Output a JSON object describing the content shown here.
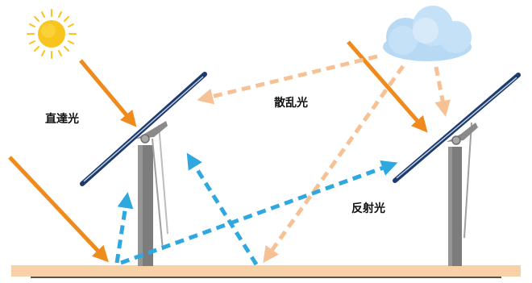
{
  "labels": {
    "direct": "直達光",
    "scattered": "散乱光",
    "reflected": "反射光"
  },
  "icons": {
    "sun": "sun-icon",
    "cloud": "cloud-icon",
    "panel": "solar-panel-icon"
  },
  "colors": {
    "direct_light": "#ef8a1c",
    "scattered_light": "#f6c194",
    "reflected_light": "#2fa8e0",
    "ground": "#f8d2a6",
    "panel_frame": "#1e3b6e",
    "pole": "#808080",
    "sun": "#f7c51d",
    "cloud": "#c5e1f7"
  }
}
